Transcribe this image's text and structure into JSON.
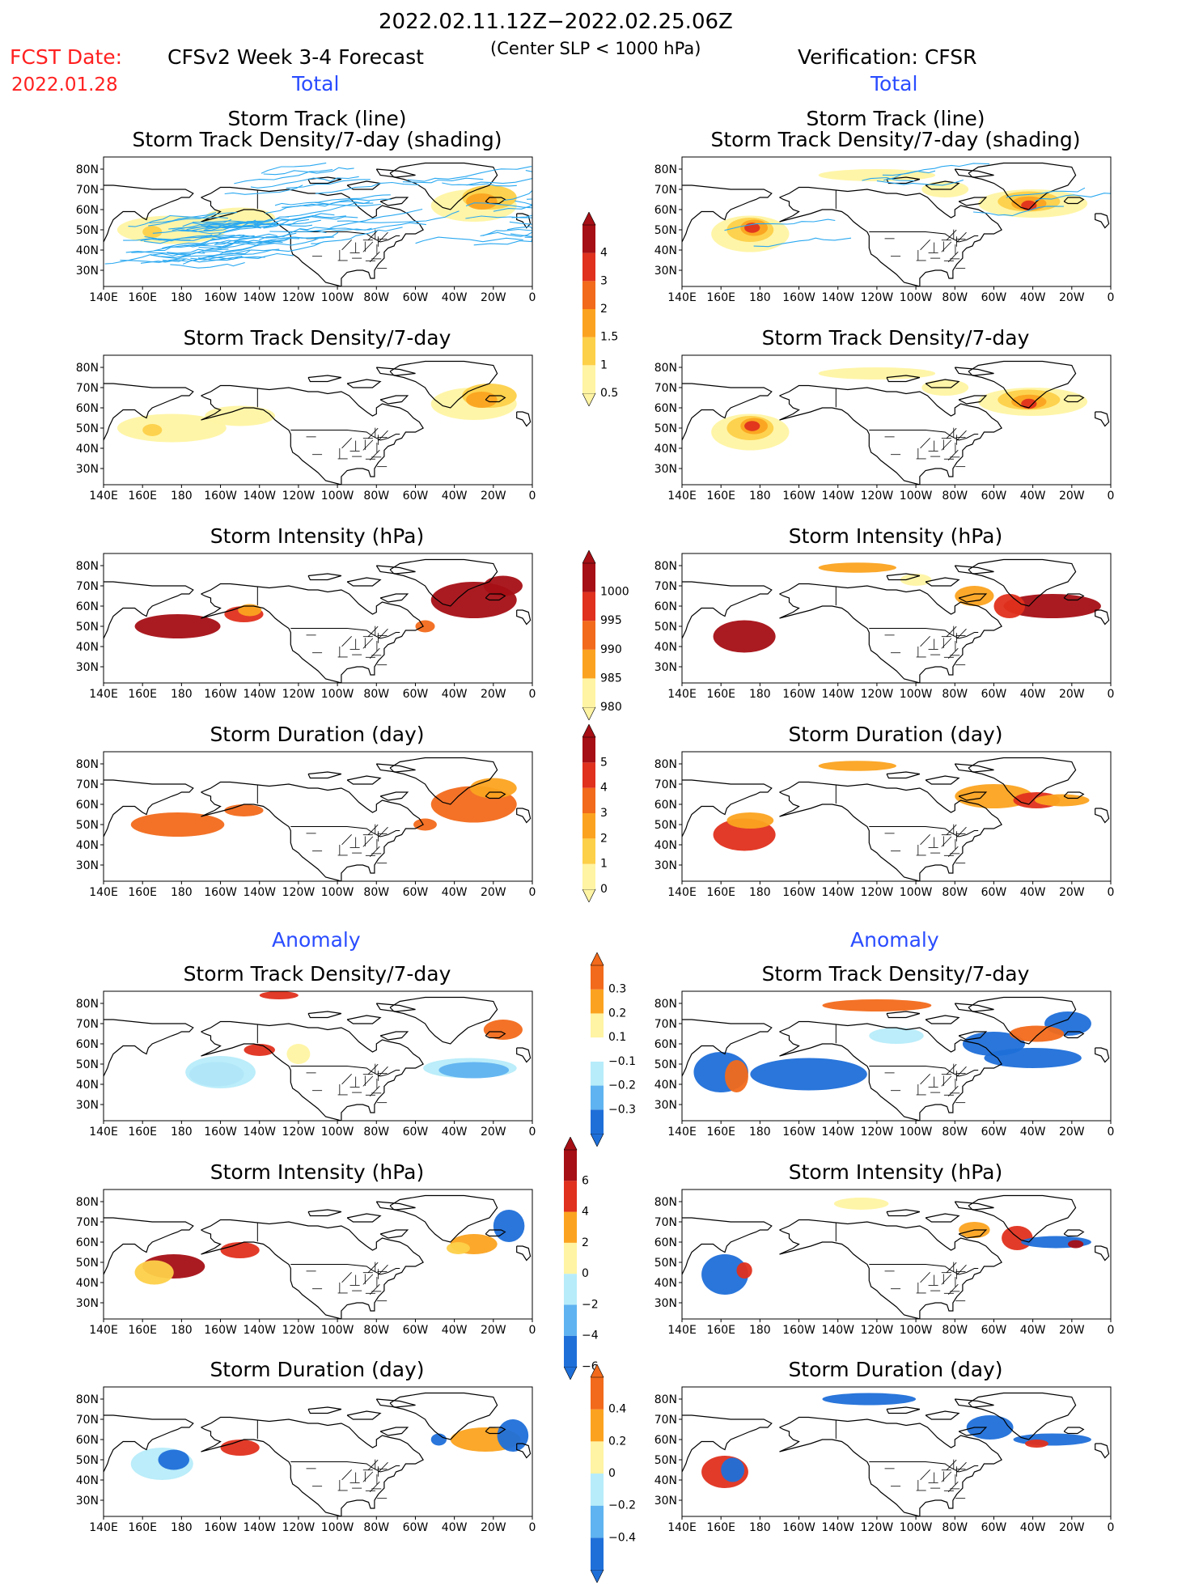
{
  "header": {
    "period": "2022.02.11.12Z−2022.02.25.06Z",
    "subtitle": "(Center SLP < 1000 hPa)",
    "fcst_label": "FCST Date:",
    "fcst_date": "2022.01.28",
    "left_model": "CFSv2 Week 3-4 Forecast",
    "right_model": "Verification: CFSR"
  },
  "sections": {
    "total": "Total",
    "anomaly": "Anomaly"
  },
  "titles": {
    "track_line": "Storm Track (line)",
    "track_shading": "Storm Track Density/7-day (shading)",
    "density": "Storm Track Density/7-day",
    "intensity": "Storm Intensity (hPa)",
    "duration": "Storm Duration (day)"
  },
  "axes": {
    "lon": [
      "140E",
      "160E",
      "180",
      "160W",
      "140W",
      "120W",
      "100W",
      "80W",
      "60W",
      "40W",
      "20W",
      "0"
    ],
    "lat": [
      "80N",
      "70N",
      "60N",
      "50N",
      "40N",
      "30N"
    ]
  },
  "colorbars": {
    "density_total": [
      "4",
      "3",
      "2",
      "1.5",
      "1",
      "0.5"
    ],
    "intensity_total": [
      "1000",
      "995",
      "990",
      "985",
      "980"
    ],
    "duration_total": [
      "5",
      "4",
      "3",
      "2",
      "1",
      "0"
    ],
    "density_anom": [
      "0.3",
      "0.2",
      "0.1",
      "−0.1",
      "−0.2",
      "−0.3"
    ],
    "intensity_anom": [
      "6",
      "4",
      "2",
      "0",
      "−2",
      "−4",
      "−6"
    ],
    "duration_anom": [
      "0.4",
      "0.2",
      "0",
      "−0.2",
      "−0.4"
    ]
  },
  "colors": {
    "dark_red": "#a50f15",
    "red": "#e0301e",
    "orange_red": "#f26a1b",
    "orange": "#fba320",
    "light_orange": "#fdd049",
    "pale_yellow": "#fff4a3",
    "light_blue": "#b7ecfa",
    "mid_blue": "#5fb3f0",
    "blue": "#1f6fd9",
    "track_blue": "#2aa8f0"
  }
}
